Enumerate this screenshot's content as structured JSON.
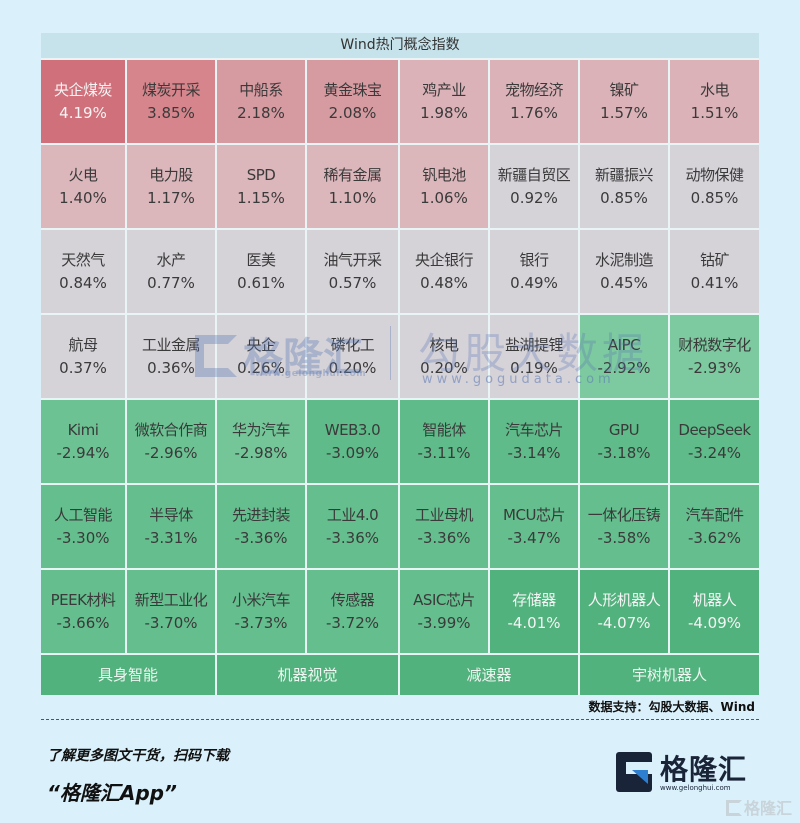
{
  "title": "Wind热门概念指数",
  "colors": {
    "page_bg": "#daf1fb",
    "header_bg": "#c6e2ea",
    "red_strong": "#d0707a",
    "red_mid": "#d6858c",
    "red_light": "#d8a2a9",
    "red_pale": "#dbb6bb",
    "neutral": "#d5d2d8",
    "green_light": "#72c497",
    "green_mid": "#63bd8c",
    "green_strong": "#52b27d"
  },
  "grid": {
    "columns": 8,
    "rows": [
      [
        {
          "name": "央企煤炭",
          "pct": "4.19%",
          "color": "#d0707a",
          "light": true
        },
        {
          "name": "煤炭开采",
          "pct": "3.85%",
          "color": "#d6858c"
        },
        {
          "name": "中船系",
          "pct": "2.18%",
          "color": "#d69aa1"
        },
        {
          "name": "黄金珠宝",
          "pct": "2.08%",
          "color": "#d69aa1"
        },
        {
          "name": "鸡产业",
          "pct": "1.98%",
          "color": "#dbb2b8"
        },
        {
          "name": "宠物经济",
          "pct": "1.76%",
          "color": "#dbb2b8"
        },
        {
          "name": "镍矿",
          "pct": "1.57%",
          "color": "#dbb2b8"
        },
        {
          "name": "水电",
          "pct": "1.51%",
          "color": "#dbb2b8"
        }
      ],
      [
        {
          "name": "火电",
          "pct": "1.40%",
          "color": "#dbb6bb"
        },
        {
          "name": "电力股",
          "pct": "1.17%",
          "color": "#dbb6bb"
        },
        {
          "name": "SPD",
          "pct": "1.15%",
          "color": "#dbb6bb"
        },
        {
          "name": "稀有金属",
          "pct": "1.10%",
          "color": "#dbb6bb"
        },
        {
          "name": "钒电池",
          "pct": "1.06%",
          "color": "#dbb6bb"
        },
        {
          "name": "新疆自贸区",
          "pct": "0.92%",
          "color": "#d5d2d8"
        },
        {
          "name": "新疆振兴",
          "pct": "0.85%",
          "color": "#d5d2d8"
        },
        {
          "name": "动物保健",
          "pct": "0.85%",
          "color": "#d5d2d8"
        }
      ],
      [
        {
          "name": "天然气",
          "pct": "0.84%",
          "color": "#d5d2d8"
        },
        {
          "name": "水产",
          "pct": "0.77%",
          "color": "#d5d2d8"
        },
        {
          "name": "医美",
          "pct": "0.61%",
          "color": "#d5d2d8"
        },
        {
          "name": "油气开采",
          "pct": "0.57%",
          "color": "#d5d2d8"
        },
        {
          "name": "央企银行",
          "pct": "0.48%",
          "color": "#d5d2d8"
        },
        {
          "name": "银行",
          "pct": "0.49%",
          "color": "#d5d2d8"
        },
        {
          "name": "水泥制造",
          "pct": "0.45%",
          "color": "#d5d2d8"
        },
        {
          "name": "钴矿",
          "pct": "0.41%",
          "color": "#d5d2d8"
        }
      ],
      [
        {
          "name": "航母",
          "pct": "0.37%",
          "color": "#d5d2d8"
        },
        {
          "name": "工业金属",
          "pct": "0.36%",
          "color": "#d5d2d8"
        },
        {
          "name": "央企",
          "pct": "0.26%",
          "color": "#d5d2d8"
        },
        {
          "name": "磷化工",
          "pct": "0.20%",
          "color": "#d5d2d8"
        },
        {
          "name": "核电",
          "pct": "0.20%",
          "color": "#d5d2d8"
        },
        {
          "name": "盐湖提锂",
          "pct": "0.19%",
          "color": "#d5d2d8"
        },
        {
          "name": "AIPC",
          "pct": "-2.92%",
          "color": "#7dc9a0"
        },
        {
          "name": "财税数字化",
          "pct": "-2.93%",
          "color": "#7dc9a0"
        }
      ],
      [
        {
          "name": "Kimi",
          "pct": "-2.94%",
          "color": "#6cc293"
        },
        {
          "name": "微软合作商",
          "pct": "-2.96%",
          "color": "#6cc293"
        },
        {
          "name": "华为汽车",
          "pct": "-2.98%",
          "color": "#74c699"
        },
        {
          "name": "WEB3.0",
          "pct": "-3.09%",
          "color": "#5fbb89"
        },
        {
          "name": "智能体",
          "pct": "-3.11%",
          "color": "#5fbb89"
        },
        {
          "name": "汽车芯片",
          "pct": "-3.14%",
          "color": "#5fbb89"
        },
        {
          "name": "GPU",
          "pct": "-3.18%",
          "color": "#5fbb89"
        },
        {
          "name": "DeepSeek",
          "pct": "-3.24%",
          "color": "#5fbb89"
        }
      ],
      [
        {
          "name": "人工智能",
          "pct": "-3.30%",
          "color": "#64be8d"
        },
        {
          "name": "半导体",
          "pct": "-3.31%",
          "color": "#64be8d"
        },
        {
          "name": "先进封装",
          "pct": "-3.36%",
          "color": "#64be8d"
        },
        {
          "name": "工业4.0",
          "pct": "-3.36%",
          "color": "#64be8d"
        },
        {
          "name": "工业母机",
          "pct": "-3.36%",
          "color": "#64be8d"
        },
        {
          "name": "MCU芯片",
          "pct": "-3.47%",
          "color": "#64be8d"
        },
        {
          "name": "一体化压铸",
          "pct": "-3.58%",
          "color": "#64be8d"
        },
        {
          "name": "汽车配件",
          "pct": "-3.62%",
          "color": "#64be8d"
        }
      ],
      [
        {
          "name": "PEEK材料",
          "pct": "-3.66%",
          "color": "#64be8d"
        },
        {
          "name": "新型工业化",
          "pct": "-3.70%",
          "color": "#64be8d"
        },
        {
          "name": "小米汽车",
          "pct": "-3.73%",
          "color": "#64be8d"
        },
        {
          "name": "传感器",
          "pct": "-3.72%",
          "color": "#64be8d"
        },
        {
          "name": "ASIC芯片",
          "pct": "-3.99%",
          "color": "#64be8d"
        },
        {
          "name": "存储器",
          "pct": "-4.01%",
          "color": "#52b27d",
          "light": true
        },
        {
          "name": "人形机器人",
          "pct": "-4.07%",
          "color": "#52b27d",
          "light": true
        },
        {
          "name": "机器人",
          "pct": "-4.09%",
          "color": "#52b27d",
          "light": true
        }
      ]
    ],
    "bottom_row": [
      "具身智能",
      "机器视觉",
      "减速器",
      "宇树机器人"
    ]
  },
  "source_text": "数据支持：勾股大数据、Wind",
  "promo": {
    "line1": "了解更多图文干货，扫码下载",
    "line2": "“格隆汇App”"
  },
  "logo": {
    "name": "格隆汇",
    "url": "www.gelonghui.com"
  },
  "watermarks": {
    "left_name": "格隆汇",
    "left_url": "www.gelonghui.com",
    "right_name": "勾股大数据",
    "right_url": "www.gogudata.com",
    "corner": "格隆汇"
  },
  "chart_data": {
    "type": "heatmap",
    "title": "Wind热门概念指数",
    "layout": "treemap-grid 8 columns, 7 rows + 4 wide cells",
    "categories": [
      "央企煤炭",
      "煤炭开采",
      "中船系",
      "黄金珠宝",
      "鸡产业",
      "宠物经济",
      "镍矿",
      "水电",
      "火电",
      "电力股",
      "SPD",
      "稀有金属",
      "钒电池",
      "新疆自贸区",
      "新疆振兴",
      "动物保健",
      "天然气",
      "水产",
      "医美",
      "油气开采",
      "央企银行",
      "银行",
      "水泥制造",
      "钴矿",
      "航母",
      "工业金属",
      "央企",
      "磷化工",
      "核电",
      "盐湖提锂",
      "AIPC",
      "财税数字化",
      "Kimi",
      "微软合作商",
      "华为汽车",
      "WEB3.0",
      "智能体",
      "汽车芯片",
      "GPU",
      "DeepSeek",
      "人工智能",
      "半导体",
      "先进封装",
      "工业4.0",
      "工业母机",
      "MCU芯片",
      "一体化压铸",
      "汽车配件",
      "PEEK材料",
      "新型工业化",
      "小米汽车",
      "传感器",
      "ASIC芯片",
      "存储器",
      "人形机器人",
      "机器人"
    ],
    "values": [
      4.19,
      3.85,
      2.18,
      2.08,
      1.98,
      1.76,
      1.57,
      1.51,
      1.4,
      1.17,
      1.15,
      1.1,
      1.06,
      0.92,
      0.85,
      0.85,
      0.84,
      0.77,
      0.61,
      0.57,
      0.48,
      0.49,
      0.45,
      0.41,
      0.37,
      0.36,
      0.26,
      0.2,
      0.2,
      0.19,
      -2.92,
      -2.93,
      -2.94,
      -2.96,
      -2.98,
      -3.09,
      -3.11,
      -3.14,
      -3.18,
      -3.24,
      -3.3,
      -3.31,
      -3.36,
      -3.36,
      -3.36,
      -3.47,
      -3.58,
      -3.62,
      -3.66,
      -3.7,
      -3.73,
      -3.72,
      -3.99,
      -4.01,
      -4.07,
      -4.09
    ],
    "unit": "%",
    "extra_categories_no_value": [
      "具身智能",
      "机器视觉",
      "减速器",
      "宇树机器人"
    ],
    "color_scale": {
      "positive": "red",
      "negative": "green"
    },
    "source": "数据支持：勾股大数据、Wind"
  }
}
